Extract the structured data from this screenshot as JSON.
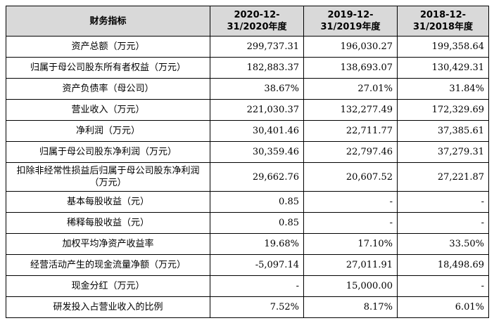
{
  "table": {
    "headers": [
      "财务指标",
      "2020-12-31/2020年度",
      "2019-12-31/2019年度",
      "2018-12-31/2018年度"
    ],
    "rows": [
      {
        "label": "资产总额（万元）",
        "values": [
          "299,737.31",
          "196,030.27",
          "199,358.64"
        ]
      },
      {
        "label": "归属于母公司股东所有者权益（万元）",
        "values": [
          "182,883.37",
          "138,693.07",
          "130,429.31"
        ]
      },
      {
        "label": "资产负债率（母公司）",
        "values": [
          "38.67%",
          "27.01%",
          "31.84%"
        ]
      },
      {
        "label": "营业收入（万元）",
        "values": [
          "221,030.37",
          "132,277.49",
          "172,329.69"
        ]
      },
      {
        "label": "净利润（万元）",
        "values": [
          "30,401.46",
          "22,711.77",
          "37,385.61"
        ]
      },
      {
        "label": "归属于母公司股东净利润（万元）",
        "values": [
          "30,359.46",
          "22,797.46",
          "37,279.31"
        ]
      },
      {
        "label": "扣除非经常性损益后归属于母公司股东净利润（万元）",
        "values": [
          "29,662.76",
          "20,607.52",
          "27,221.87"
        ]
      },
      {
        "label": "基本每股收益（元）",
        "values": [
          "0.85",
          "-",
          "-"
        ]
      },
      {
        "label": "稀释每股收益（元）",
        "values": [
          "0.85",
          "-",
          "-"
        ]
      },
      {
        "label": "加权平均净资产收益率",
        "values": [
          "19.68%",
          "17.10%",
          "33.50%"
        ]
      },
      {
        "label": "经营活动产生的现金流量净额（万元）",
        "values": [
          "-5,097.14",
          "27,011.91",
          "18,498.69"
        ]
      },
      {
        "label": "现金分红（万元）",
        "values": [
          "-",
          "15,000.00",
          "-"
        ]
      },
      {
        "label": "研发投入占营业收入的比例",
        "values": [
          "7.52%",
          "8.17%",
          "6.01%"
        ]
      }
    ]
  }
}
